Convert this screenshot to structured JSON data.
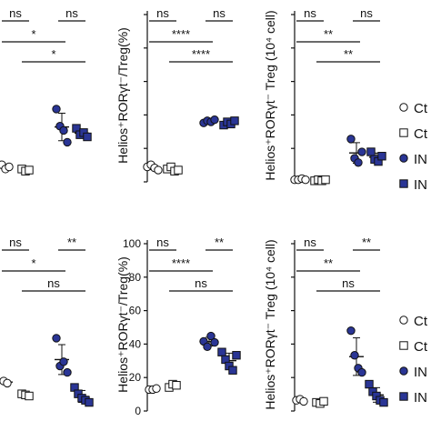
{
  "colors": {
    "ink": "#111111",
    "ctrl_fill": "#ffffff",
    "in_fill": "#2a3595"
  },
  "legend": [
    "Ct",
    "Ct",
    "IN",
    "IN"
  ],
  "chart_data": [
    {
      "type": "scatter",
      "ylabel": "",
      "ylim": [
        0,
        100
      ],
      "yticks": [],
      "groups": [
        {
          "values": [
            16,
            12,
            14
          ]
        },
        {
          "values": [
            12,
            10,
            11
          ]
        },
        {
          "values": [
            68,
            52,
            48,
            37
          ]
        },
        {
          "values": [
            50,
            44,
            46,
            42
          ]
        }
      ],
      "brackets": [
        {
          "from": 0,
          "to": 1,
          "level": 0,
          "label": "ns"
        },
        {
          "from": 2,
          "to": 3,
          "level": 0,
          "label": "ns"
        },
        {
          "from": 0,
          "to": 2,
          "level": 1,
          "label": "*"
        },
        {
          "from": 1,
          "to": 3,
          "level": 2,
          "label": "*"
        }
      ]
    },
    {
      "type": "scatter",
      "ylabel": "Helios⁺RORγt⁻/Treg(%)",
      "ylim": [
        0,
        100
      ],
      "yticks": [],
      "groups": [
        {
          "values": [
            14,
            16,
            13,
            11
          ]
        },
        {
          "values": [
            12,
            14,
            10,
            11
          ]
        },
        {
          "values": [
            55,
            57,
            56,
            58
          ]
        },
        {
          "values": [
            53,
            56,
            54,
            57
          ]
        }
      ],
      "brackets": [
        {
          "from": 0,
          "to": 1,
          "level": 0,
          "label": "ns"
        },
        {
          "from": 2,
          "to": 3,
          "level": 0,
          "label": "ns"
        },
        {
          "from": 0,
          "to": 2,
          "level": 1,
          "label": "****"
        },
        {
          "from": 1,
          "to": 3,
          "level": 2,
          "label": "****"
        }
      ]
    },
    {
      "type": "scatter",
      "ylabel": "Helios⁺RORγt⁻ Treg (10⁴ cell)",
      "ylim": [
        0,
        100
      ],
      "yticks": [],
      "groups": [
        {
          "values": [
            2,
            2,
            3,
            2
          ]
        },
        {
          "values": [
            1,
            2,
            1,
            2
          ]
        },
        {
          "values": [
            40,
            22,
            18,
            28
          ]
        },
        {
          "values": [
            28,
            21,
            19,
            24
          ]
        }
      ],
      "brackets": [
        {
          "from": 0,
          "to": 1,
          "level": 0,
          "label": "ns"
        },
        {
          "from": 2,
          "to": 3,
          "level": 0,
          "label": "ns"
        },
        {
          "from": 0,
          "to": 2,
          "level": 1,
          "label": "**"
        },
        {
          "from": 1,
          "to": 3,
          "level": 2,
          "label": "**"
        }
      ]
    },
    {
      "type": "scatter",
      "ylabel": "",
      "ylim": [
        0,
        100
      ],
      "yticks": [],
      "groups": [
        {
          "values": [
            28,
            26
          ]
        },
        {
          "values": [
            16,
            15,
            14
          ]
        },
        {
          "values": [
            68,
            42,
            46,
            36
          ]
        },
        {
          "values": [
            22,
            16,
            12,
            10,
            8
          ]
        }
      ],
      "brackets": [
        {
          "from": 0,
          "to": 1,
          "level": 0,
          "label": "ns"
        },
        {
          "from": 2,
          "to": 3,
          "level": 0,
          "label": "**"
        },
        {
          "from": 0,
          "to": 2,
          "level": 1,
          "label": "*"
        },
        {
          "from": 1,
          "to": 3,
          "level": 2,
          "label": "ns"
        }
      ]
    },
    {
      "type": "scatter",
      "ylabel": "Helios⁺RORγt⁻/Treg(%)",
      "ylim": [
        0,
        100
      ],
      "yticks": [
        "0",
        "20",
        "40",
        "60",
        "80",
        "100"
      ],
      "groups": [
        {
          "values": [
            20,
            20,
            21
          ]
        },
        {
          "values": [
            22,
            25,
            24
          ]
        },
        {
          "values": [
            65,
            60,
            70,
            64
          ]
        },
        {
          "values": [
            55,
            48,
            42,
            38,
            52
          ]
        }
      ],
      "brackets": [
        {
          "from": 0,
          "to": 1,
          "level": 0,
          "label": "ns"
        },
        {
          "from": 2,
          "to": 3,
          "level": 0,
          "label": "**"
        },
        {
          "from": 0,
          "to": 2,
          "level": 1,
          "label": "****"
        },
        {
          "from": 1,
          "to": 3,
          "level": 2,
          "label": "ns"
        }
      ]
    },
    {
      "type": "scatter",
      "ylabel": "Helios⁺RORγt⁻ Treg (10⁴ cell)",
      "ylim": [
        0,
        100
      ],
      "yticks": [],
      "groups": [
        {
          "values": [
            10,
            11,
            9
          ]
        },
        {
          "values": [
            8,
            7,
            9
          ]
        },
        {
          "values": [
            75,
            52,
            40,
            36
          ]
        },
        {
          "values": [
            25,
            18,
            14,
            10,
            8
          ]
        }
      ],
      "brackets": [
        {
          "from": 0,
          "to": 1,
          "level": 0,
          "label": "ns"
        },
        {
          "from": 2,
          "to": 3,
          "level": 0,
          "label": "**"
        },
        {
          "from": 0,
          "to": 2,
          "level": 1,
          "label": "**"
        },
        {
          "from": 1,
          "to": 3,
          "level": 2,
          "label": "ns"
        }
      ]
    }
  ]
}
